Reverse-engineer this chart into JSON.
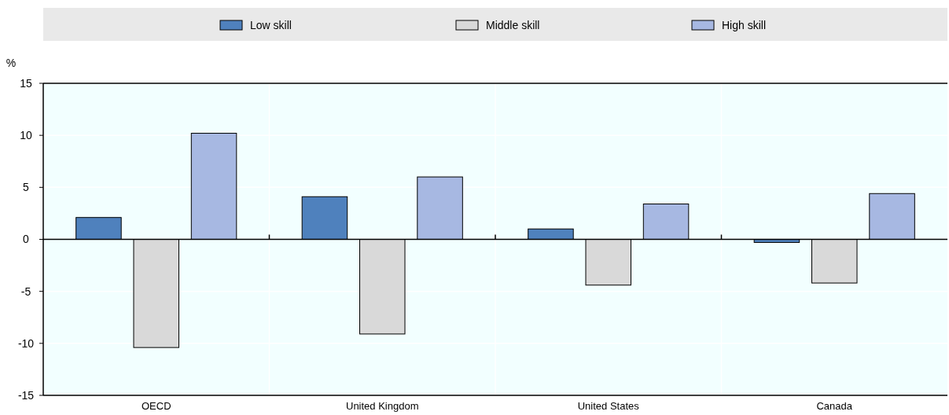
{
  "chart_data": {
    "type": "bar",
    "ylabel": "%",
    "categories": [
      "OECD",
      "United Kingdom",
      "United States",
      "Canada"
    ],
    "series": [
      {
        "name": "Low skill",
        "color": "#4f81bd",
        "values": [
          2.1,
          4.1,
          1.0,
          -0.3
        ]
      },
      {
        "name": "Middle skill",
        "color": "#d9d9d9",
        "values": [
          -10.4,
          -9.1,
          -4.4,
          -4.2
        ]
      },
      {
        "name": "High skill",
        "color": "#a7b8e2",
        "values": [
          10.2,
          6.0,
          3.4,
          4.4
        ]
      }
    ],
    "ylim": [
      -15,
      15
    ],
    "yticks": [
      -15,
      -10,
      -5,
      0,
      5,
      10,
      15
    ],
    "grid": true,
    "legend": "top"
  }
}
